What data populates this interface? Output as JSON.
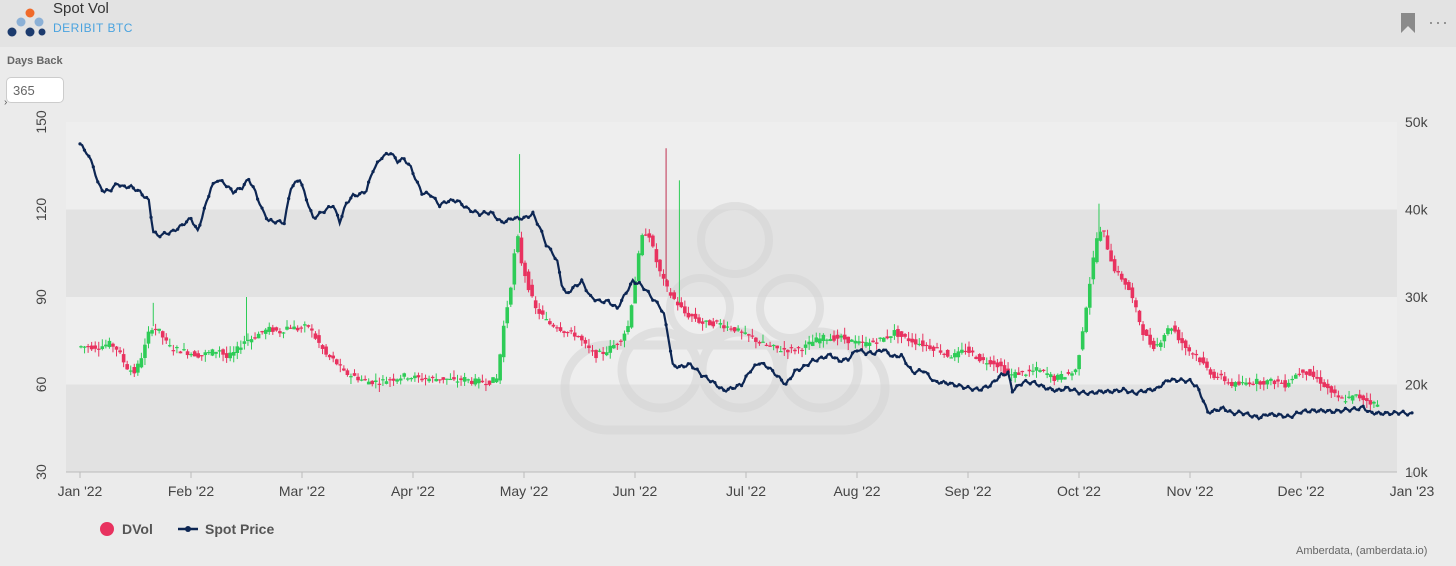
{
  "header": {
    "title": "Spot Vol",
    "subtitle": "DERIBIT BTC",
    "icons": [
      "bookmark-icon",
      "more-icon"
    ],
    "more_glyph": "···"
  },
  "controls": {
    "days_back_label": "Days Back",
    "days_back_value": "365"
  },
  "colors": {
    "up": "#2ecc57",
    "down": "#e8325f",
    "spot_line": "#0d2653",
    "band": "#e2e2e2",
    "plot_bg": "#eeeeee"
  },
  "chart_data": {
    "type": "candlestick+line",
    "x_tick_labels": [
      "Jan '22",
      "Feb '22",
      "Mar '22",
      "Apr '22",
      "May '22",
      "Jun '22",
      "Jul '22",
      "Aug '22",
      "Sep '22",
      "Oct '22",
      "Nov '22",
      "Dec '22",
      "Jan '23"
    ],
    "y_left": {
      "ticks": [
        "30",
        "60",
        "90",
        "120",
        "150"
      ],
      "range": [
        30,
        150
      ]
    },
    "y_right": {
      "ticks": [
        "10k",
        "20k",
        "30k",
        "40k",
        "50k"
      ],
      "range": [
        10000,
        50000
      ]
    },
    "grid": "alternating horizontal bands",
    "legend_position": "bottom-left",
    "legend": [
      "DVol",
      "Spot Price"
    ],
    "series": [
      {
        "name": "DVol",
        "axis": "left",
        "type": "candlestick",
        "anchors": [
          [
            0,
            73
          ],
          [
            10,
            73
          ],
          [
            15,
            74
          ],
          [
            18,
            72
          ],
          [
            22,
            66
          ],
          [
            26,
            64
          ],
          [
            30,
            72
          ],
          [
            33,
            80
          ],
          [
            37,
            78
          ],
          [
            41,
            73
          ],
          [
            45,
            72
          ],
          [
            50,
            71
          ],
          [
            55,
            70
          ],
          [
            60,
            71
          ],
          [
            64,
            72
          ],
          [
            67,
            69
          ],
          [
            71,
            71
          ],
          [
            75,
            75
          ],
          [
            79,
            76
          ],
          [
            83,
            78
          ],
          [
            87,
            79
          ],
          [
            91,
            78
          ],
          [
            95,
            80
          ],
          [
            99,
            79
          ],
          [
            104,
            80
          ],
          [
            108,
            75
          ],
          [
            112,
            70
          ],
          [
            116,
            68
          ],
          [
            120,
            64
          ],
          [
            124,
            63
          ],
          [
            130,
            61
          ],
          [
            136,
            61
          ],
          [
            142,
            62
          ],
          [
            148,
            63
          ],
          [
            154,
            62
          ],
          [
            160,
            62
          ],
          [
            166,
            62
          ],
          [
            170,
            61
          ],
          [
            174,
            62
          ],
          [
            178,
            61
          ],
          [
            182,
            61
          ],
          [
            186,
            61
          ],
          [
            189,
            62
          ],
          [
            192,
            80
          ],
          [
            195,
            93
          ],
          [
            198,
            112
          ],
          [
            200,
            102
          ],
          [
            203,
            94
          ],
          [
            206,
            86
          ],
          [
            209,
            84
          ],
          [
            212,
            81
          ],
          [
            216,
            80
          ],
          [
            220,
            78
          ],
          [
            225,
            77
          ],
          [
            229,
            73
          ],
          [
            233,
            70
          ],
          [
            237,
            71
          ],
          [
            241,
            73
          ],
          [
            245,
            76
          ],
          [
            248,
            80
          ],
          [
            251,
            95
          ],
          [
            254,
            110
          ],
          [
            257,
            113
          ],
          [
            260,
            104
          ],
          [
            263,
            97
          ],
          [
            266,
            92
          ],
          [
            270,
            88
          ],
          [
            274,
            84
          ],
          [
            278,
            83
          ],
          [
            281,
            81
          ],
          [
            285,
            81
          ],
          [
            289,
            81
          ],
          [
            292,
            80
          ],
          [
            296,
            79
          ],
          [
            300,
            77
          ],
          [
            304,
            76
          ],
          [
            308,
            74
          ],
          [
            312,
            73
          ],
          [
            316,
            72
          ],
          [
            320,
            72
          ],
          [
            324,
            72
          ],
          [
            328,
            73
          ],
          [
            332,
            75
          ],
          [
            336,
            76
          ],
          [
            340,
            76
          ],
          [
            344,
            76
          ],
          [
            348,
            75
          ],
          [
            352,
            74
          ],
          [
            356,
            74
          ],
          [
            360,
            75
          ],
          [
            364,
            76
          ],
          [
            368,
            78
          ],
          [
            372,
            76
          ],
          [
            376,
            75
          ],
          [
            380,
            74
          ],
          [
            384,
            73
          ],
          [
            388,
            72
          ],
          [
            392,
            70
          ],
          [
            396,
            70
          ],
          [
            400,
            72
          ],
          [
            404,
            70
          ],
          [
            408,
            68
          ],
          [
            412,
            68
          ],
          [
            416,
            66
          ],
          [
            420,
            63
          ],
          [
            424,
            64
          ],
          [
            428,
            64
          ],
          [
            432,
            65
          ],
          [
            436,
            64
          ],
          [
            440,
            62
          ],
          [
            444,
            63
          ],
          [
            448,
            64
          ],
          [
            450,
            65
          ],
          [
            453,
            80
          ],
          [
            456,
            95
          ],
          [
            459,
            110
          ],
          [
            462,
            113
          ],
          [
            465,
            104
          ],
          [
            468,
            98
          ],
          [
            471,
            96
          ],
          [
            474,
            92
          ],
          [
            477,
            85
          ],
          [
            480,
            78
          ],
          [
            484,
            73
          ],
          [
            487,
            74
          ],
          [
            490,
            78
          ],
          [
            493,
            80
          ],
          [
            496,
            76
          ],
          [
            500,
            72
          ],
          [
            504,
            70
          ],
          [
            508,
            66
          ],
          [
            512,
            63
          ],
          [
            516,
            62
          ],
          [
            520,
            60
          ],
          [
            524,
            60
          ],
          [
            528,
            61
          ],
          [
            532,
            61
          ],
          [
            536,
            61
          ],
          [
            540,
            61
          ],
          [
            544,
            60
          ],
          [
            548,
            63
          ],
          [
            552,
            65
          ],
          [
            556,
            63
          ],
          [
            560,
            61
          ],
          [
            564,
            58
          ],
          [
            568,
            55
          ],
          [
            572,
            55
          ],
          [
            576,
            56
          ],
          [
            580,
            55
          ],
          [
            585,
            53
          ]
        ]
      },
      {
        "name": "Spot Price",
        "axis": "right",
        "type": "line",
        "anchors": [
          [
            0,
            47500
          ],
          [
            3,
            46500
          ],
          [
            6,
            45000
          ],
          [
            8,
            43000
          ],
          [
            11,
            42000
          ],
          [
            14,
            42300
          ],
          [
            17,
            43000
          ],
          [
            19,
            42600
          ],
          [
            23,
            42600
          ],
          [
            27,
            42000
          ],
          [
            31,
            41000
          ],
          [
            33,
            37500
          ],
          [
            35,
            37000
          ],
          [
            38,
            37200
          ],
          [
            42,
            37500
          ],
          [
            46,
            38200
          ],
          [
            50,
            39000
          ],
          [
            53,
            37500
          ],
          [
            56,
            40000
          ],
          [
            59,
            42500
          ],
          [
            62,
            43400
          ],
          [
            65,
            43000
          ],
          [
            69,
            42000
          ],
          [
            73,
            42500
          ],
          [
            76,
            43500
          ],
          [
            79,
            42000
          ],
          [
            82,
            40000
          ],
          [
            85,
            38700
          ],
          [
            89,
            38600
          ],
          [
            92,
            38500
          ],
          [
            95,
            42500
          ],
          [
            99,
            43500
          ],
          [
            102,
            41200
          ],
          [
            105,
            39000
          ],
          [
            108,
            39500
          ],
          [
            111,
            40000
          ],
          [
            114,
            40500
          ],
          [
            117,
            38600
          ],
          [
            120,
            40700
          ],
          [
            123,
            41600
          ],
          [
            126,
            41700
          ],
          [
            129,
            42200
          ],
          [
            132,
            44500
          ],
          [
            136,
            46000
          ],
          [
            140,
            46500
          ],
          [
            143,
            45500
          ],
          [
            146,
            45800
          ],
          [
            149,
            44800
          ],
          [
            152,
            43000
          ],
          [
            154,
            41900
          ],
          [
            158,
            41700
          ],
          [
            162,
            40500
          ],
          [
            166,
            41000
          ],
          [
            170,
            41000
          ],
          [
            175,
            40000
          ],
          [
            180,
            39500
          ],
          [
            185,
            39700
          ],
          [
            190,
            38500
          ],
          [
            195,
            39000
          ],
          [
            200,
            39000
          ],
          [
            204,
            39500
          ],
          [
            207,
            38000
          ],
          [
            210,
            36000
          ],
          [
            213,
            35000
          ],
          [
            215,
            34000
          ],
          [
            217,
            31500
          ],
          [
            219,
            30300
          ],
          [
            222,
            31000
          ],
          [
            226,
            31800
          ],
          [
            230,
            30000
          ],
          [
            234,
            29500
          ],
          [
            238,
            29500
          ],
          [
            242,
            28700
          ],
          [
            246,
            30500
          ],
          [
            249,
            31800
          ],
          [
            252,
            31500
          ],
          [
            255,
            30800
          ],
          [
            258,
            29800
          ],
          [
            261,
            29000
          ],
          [
            263,
            28000
          ],
          [
            265,
            25500
          ],
          [
            267,
            22200
          ],
          [
            270,
            22000
          ],
          [
            275,
            22300
          ],
          [
            280,
            21100
          ],
          [
            285,
            20300
          ],
          [
            290,
            19300
          ],
          [
            294,
            19600
          ],
          [
            298,
            20000
          ],
          [
            302,
            21600
          ],
          [
            306,
            22500
          ],
          [
            310,
            22000
          ],
          [
            314,
            21000
          ],
          [
            318,
            20000
          ],
          [
            322,
            21500
          ],
          [
            326,
            22000
          ],
          [
            330,
            22700
          ],
          [
            334,
            23000
          ],
          [
            338,
            23400
          ],
          [
            342,
            22700
          ],
          [
            346,
            22900
          ],
          [
            350,
            24000
          ],
          [
            354,
            23600
          ],
          [
            358,
            23600
          ],
          [
            362,
            24000
          ],
          [
            366,
            23200
          ],
          [
            370,
            23300
          ],
          [
            375,
            21400
          ],
          [
            380,
            21600
          ],
          [
            385,
            20300
          ],
          [
            390,
            20200
          ],
          [
            395,
            19900
          ],
          [
            400,
            19600
          ],
          [
            405,
            19400
          ],
          [
            410,
            19900
          ],
          [
            415,
            21100
          ],
          [
            418,
            21300
          ],
          [
            420,
            19300
          ],
          [
            425,
            20300
          ],
          [
            430,
            20200
          ],
          [
            435,
            19600
          ],
          [
            440,
            19300
          ],
          [
            445,
            19600
          ],
          [
            450,
            19100
          ],
          [
            455,
            19000
          ],
          [
            460,
            19200
          ],
          [
            465,
            19200
          ],
          [
            470,
            19400
          ],
          [
            475,
            19000
          ],
          [
            480,
            19300
          ],
          [
            485,
            19500
          ],
          [
            490,
            20500
          ],
          [
            495,
            20500
          ],
          [
            500,
            20400
          ],
          [
            503,
            19800
          ],
          [
            506,
            18200
          ],
          [
            508,
            16800
          ],
          [
            511,
            17000
          ],
          [
            515,
            17300
          ],
          [
            519,
            16700
          ],
          [
            523,
            16800
          ],
          [
            527,
            16500
          ],
          [
            531,
            16200
          ],
          [
            535,
            16600
          ],
          [
            540,
            16500
          ],
          [
            545,
            16300
          ],
          [
            550,
            16900
          ],
          [
            555,
            17000
          ],
          [
            560,
            17000
          ],
          [
            565,
            16900
          ],
          [
            570,
            17100
          ],
          [
            575,
            17200
          ],
          [
            578,
            17400
          ],
          [
            581,
            16800
          ],
          [
            585,
            16700
          ],
          [
            590,
            16700
          ],
          [
            595,
            16800
          ],
          [
            600,
            16600
          ]
        ]
      }
    ]
  },
  "footer": {
    "credit": "Amberdata, (amberdata.io)"
  }
}
